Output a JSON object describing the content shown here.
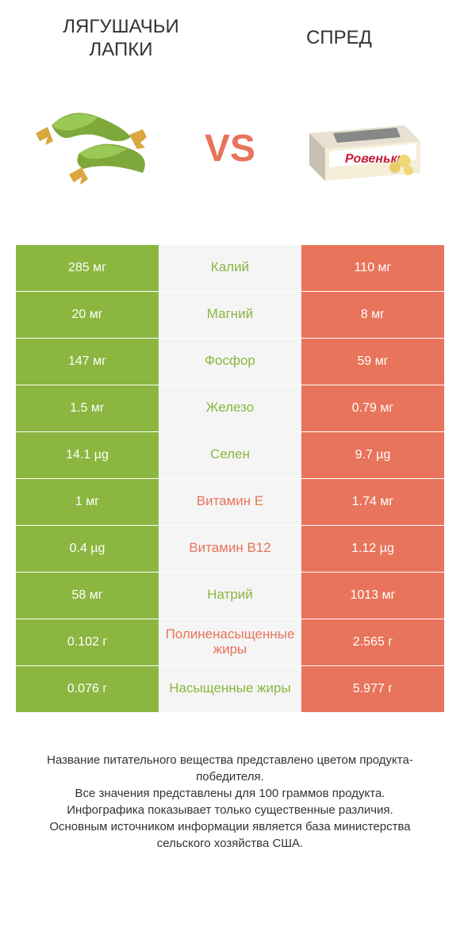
{
  "colors": {
    "green": "#8bb63f",
    "orange": "#e8745b",
    "mid_bg": "#f5f5f5",
    "text_dark": "#333333",
    "white": "#ffffff"
  },
  "header": {
    "left_title": "ЛЯГУШАЧЬИ\nЛАПКИ",
    "right_title": "СПРЕД",
    "vs": "VS"
  },
  "rows": [
    {
      "left": "285 мг",
      "mid": "Калий",
      "right": "110 мг",
      "winner": "left"
    },
    {
      "left": "20 мг",
      "mid": "Магний",
      "right": "8 мг",
      "winner": "left"
    },
    {
      "left": "147 мг",
      "mid": "Фосфор",
      "right": "59 мг",
      "winner": "left"
    },
    {
      "left": "1.5 мг",
      "mid": "Железо",
      "right": "0.79 мг",
      "winner": "left"
    },
    {
      "left": "14.1 µg",
      "mid": "Селен",
      "right": "9.7 µg",
      "winner": "left"
    },
    {
      "left": "1 мг",
      "mid": "Витамин E",
      "right": "1.74 мг",
      "winner": "right"
    },
    {
      "left": "0.4 µg",
      "mid": "Витамин B12",
      "right": "1.12 µg",
      "winner": "right"
    },
    {
      "left": "58 мг",
      "mid": "Натрий",
      "right": "1013 мг",
      "winner": "left"
    },
    {
      "left": "0.102 г",
      "mid": "Полиненасыщенные жиры",
      "right": "2.565 г",
      "winner": "right"
    },
    {
      "left": "0.076 г",
      "mid": "Насыщенные жиры",
      "right": "5.977 г",
      "winner": "left"
    }
  ],
  "footer": {
    "line1": "Название питательного вещества представлено цветом продукта-победителя.",
    "line2": "Все значения представлены для 100 граммов продукта.",
    "line3": "Инфографика показывает только существенные различия.",
    "line4": "Основным источником информации является база министерства сельского хозяйства США."
  }
}
